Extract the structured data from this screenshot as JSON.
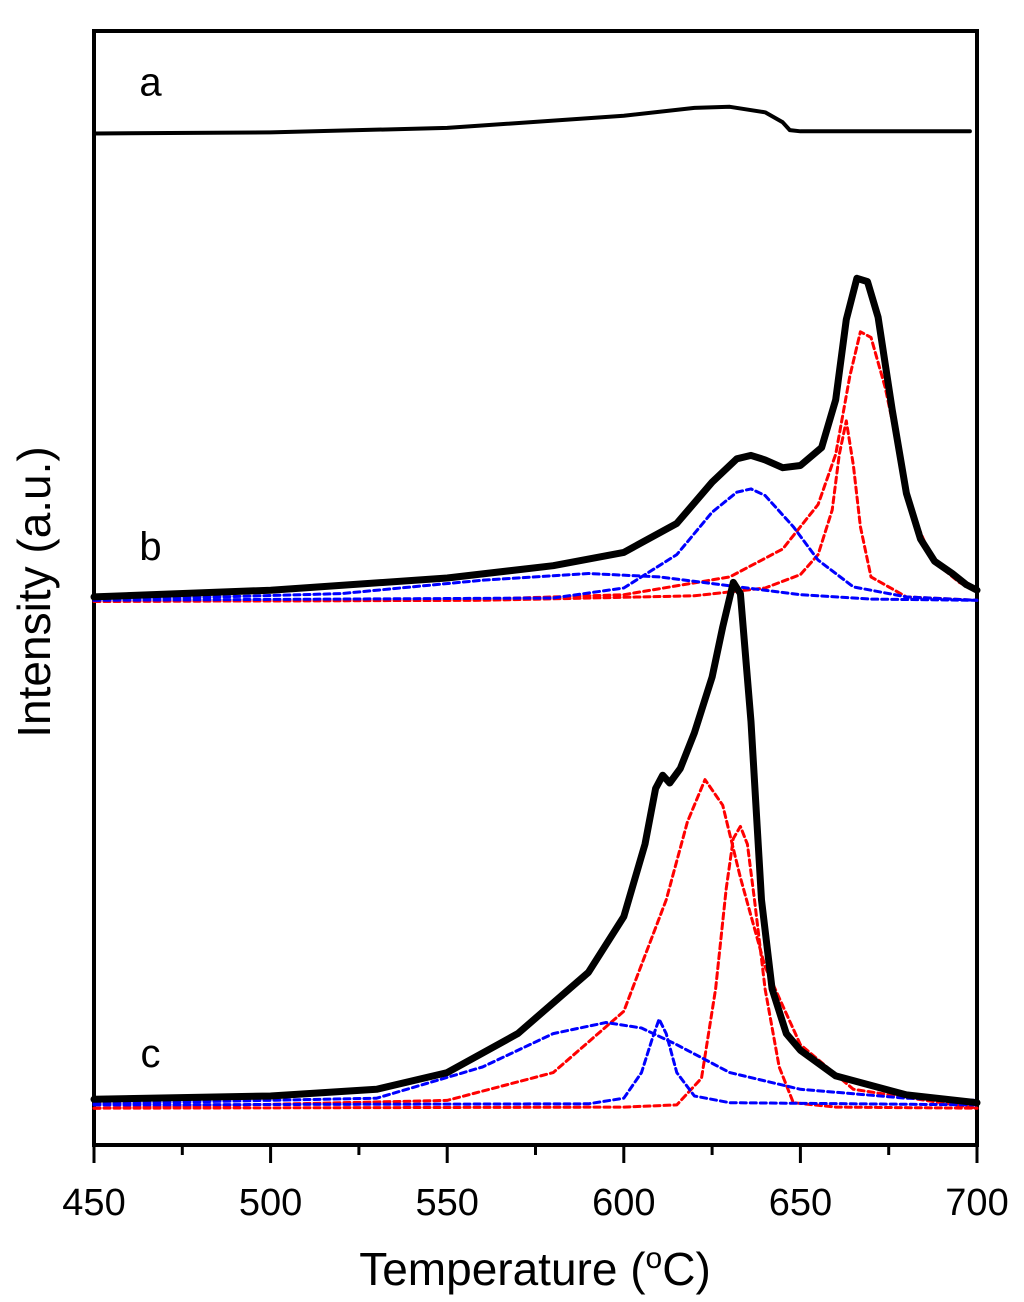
{
  "chart_data": {
    "type": "line",
    "title": "",
    "xlabel": "Temperature (",
    "xlabel_sup": "o",
    "xlabel_end": "C)",
    "ylabel": "Intensity (a.u.)",
    "xlim": [
      450,
      700
    ],
    "ylim": [
      0,
      100
    ],
    "x_ticks": [
      "450",
      "500",
      "550",
      "600",
      "650",
      "700"
    ],
    "x_minor_step": 25,
    "y_ticks_shown": false,
    "grid": false,
    "colors": {
      "measured": "#000000",
      "fit_red": "#ff0000",
      "fit_blue": "#0000ff"
    },
    "curve_labels": [
      {
        "name": "a",
        "text": "a",
        "x": 466,
        "y": 94.2
      },
      {
        "name": "b",
        "text": "b",
        "x": 466,
        "y": 52.5
      },
      {
        "name": "c",
        "text": "c",
        "x": 466,
        "y": 7.0
      }
    ],
    "series": [
      {
        "name": "a-measured",
        "group": "a",
        "style": "solid",
        "color": "#000000",
        "width": 4,
        "x": [
          450,
          500,
          550,
          600,
          620,
          630,
          640,
          645,
          647,
          650,
          660,
          680,
          698
        ],
        "y": [
          90.8,
          90.9,
          91.3,
          92.4,
          93.1,
          93.2,
          92.7,
          91.8,
          91.1,
          91.0,
          91.0,
          91.0,
          91.0
        ]
      },
      {
        "name": "b-measured",
        "group": "b",
        "style": "solid",
        "color": "#000000",
        "width": 7,
        "x": [
          450,
          500,
          550,
          580,
          600,
          615,
          625,
          632,
          636,
          640,
          645,
          650,
          656,
          660,
          663,
          666,
          669,
          672,
          676,
          680,
          684,
          688,
          693,
          697,
          700
        ],
        "y": [
          49.2,
          49.8,
          50.9,
          52.0,
          53.2,
          55.8,
          59.5,
          61.6,
          61.9,
          61.5,
          60.8,
          61.0,
          62.6,
          66.9,
          74.1,
          77.8,
          77.5,
          74.3,
          66.0,
          58.5,
          54.4,
          52.4,
          51.3,
          50.3,
          49.8
        ]
      },
      {
        "name": "b-fit-red-1",
        "group": "b",
        "style": "dashed",
        "color": "#ff0000",
        "width": 3,
        "x": [
          450,
          560,
          620,
          640,
          650,
          655,
          659,
          661,
          663,
          665,
          667,
          670,
          680,
          700
        ],
        "y": [
          48.8,
          48.9,
          49.3,
          50.0,
          51.2,
          53.0,
          57.0,
          62.0,
          65.0,
          61.0,
          55.5,
          51.0,
          49.2,
          48.9
        ]
      },
      {
        "name": "b-fit-red-2",
        "group": "b",
        "style": "dashed",
        "color": "#ff0000",
        "width": 3,
        "x": [
          450,
          550,
          600,
          630,
          645,
          655,
          660,
          664,
          667,
          670,
          674,
          678,
          682,
          686,
          690,
          695,
          700
        ],
        "y": [
          48.8,
          48.9,
          49.4,
          51.0,
          53.5,
          57.5,
          62.0,
          69.0,
          73.0,
          72.5,
          68.0,
          62.0,
          56.5,
          53.5,
          51.8,
          50.5,
          49.7
        ]
      },
      {
        "name": "b-fit-blue-1",
        "group": "b",
        "style": "dashed",
        "color": "#0000ff",
        "width": 3,
        "x": [
          450,
          520,
          560,
          590,
          610,
          630,
          650,
          670,
          700
        ],
        "y": [
          48.9,
          49.5,
          50.7,
          51.3,
          51.0,
          50.2,
          49.4,
          49.0,
          48.9
        ]
      },
      {
        "name": "b-fit-blue-2",
        "group": "b",
        "style": "dashed",
        "color": "#0000ff",
        "width": 3,
        "x": [
          450,
          580,
          600,
          615,
          625,
          632,
          636,
          640,
          648,
          655,
          665,
          680,
          700
        ],
        "y": [
          48.9,
          49.1,
          50.0,
          53.0,
          56.8,
          58.6,
          58.9,
          58.3,
          55.5,
          52.5,
          50.1,
          49.2,
          48.9
        ]
      },
      {
        "name": "c-measured",
        "group": "c",
        "style": "solid",
        "color": "#000000",
        "width": 7,
        "x": [
          450,
          500,
          530,
          550,
          570,
          590,
          600,
          606,
          609,
          611,
          613,
          616,
          620,
          625,
          628,
          631,
          633,
          636,
          639,
          642,
          646,
          650,
          660,
          680,
          700
        ],
        "y": [
          4.1,
          4.4,
          5.0,
          6.5,
          10.0,
          15.5,
          20.5,
          27.0,
          32.0,
          33.2,
          32.5,
          33.8,
          37.0,
          42.0,
          46.5,
          50.5,
          49.5,
          38.0,
          22.0,
          14.0,
          10.0,
          8.5,
          6.2,
          4.5,
          3.8
        ]
      },
      {
        "name": "c-fit-red-1",
        "group": "c",
        "style": "dashed",
        "color": "#ff0000",
        "width": 3,
        "x": [
          450,
          550,
          580,
          600,
          612,
          618,
          623,
          628,
          633,
          640,
          650,
          665,
          700
        ],
        "y": [
          3.3,
          4.0,
          6.5,
          12.0,
          22.0,
          29.0,
          32.8,
          30.5,
          24.0,
          16.0,
          9.0,
          5.0,
          3.3
        ]
      },
      {
        "name": "c-fit-red-2",
        "group": "c",
        "style": "dashed",
        "color": "#ff0000",
        "width": 3,
        "x": [
          450,
          600,
          615,
          622,
          626,
          629,
          631,
          633,
          635,
          637,
          640,
          644,
          648,
          660,
          700
        ],
        "y": [
          3.3,
          3.4,
          3.6,
          6.0,
          14.0,
          23.0,
          27.5,
          28.6,
          27.0,
          22.0,
          14.0,
          7.0,
          3.8,
          3.4,
          3.3
        ]
      },
      {
        "name": "c-fit-blue-1",
        "group": "c",
        "style": "dashed",
        "color": "#0000ff",
        "width": 3,
        "x": [
          450,
          530,
          560,
          580,
          595,
          605,
          615,
          630,
          650,
          680,
          700
        ],
        "y": [
          3.7,
          4.2,
          7.0,
          10.0,
          11.0,
          10.5,
          9.0,
          6.5,
          5.0,
          4.2,
          4.0
        ]
      },
      {
        "name": "c-fit-blue-2",
        "group": "c",
        "style": "dashed",
        "color": "#0000ff",
        "width": 3,
        "x": [
          450,
          590,
          600,
          605,
          608,
          610,
          612,
          615,
          620,
          630,
          700
        ],
        "y": [
          3.6,
          3.7,
          4.2,
          6.5,
          9.5,
          11.3,
          10.0,
          6.5,
          4.4,
          3.8,
          3.6
        ]
      }
    ]
  }
}
